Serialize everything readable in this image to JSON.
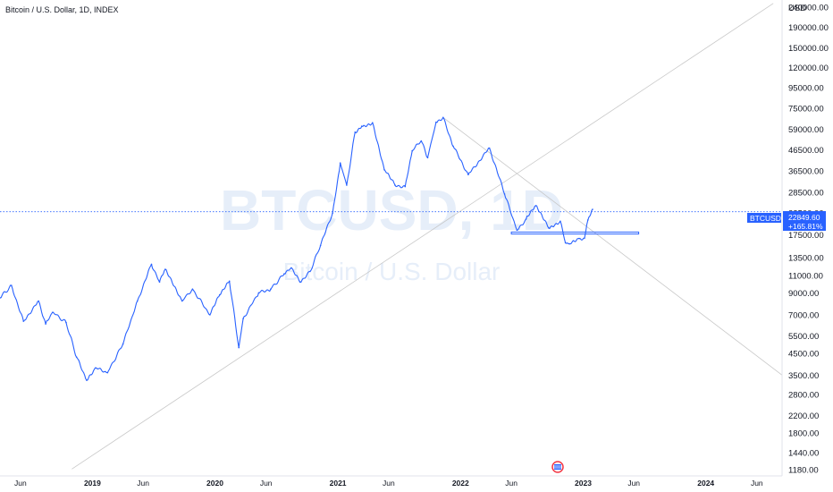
{
  "header": {
    "symbol_title": "Bitcoin / U.S. Dollar, 1D, INDEX"
  },
  "watermark": {
    "ticker": "BTCUSD, 1D",
    "name": "Bitcoin / U.S. Dollar"
  },
  "price_axis": {
    "currency": "USD",
    "labels": [
      "240000.00",
      "190000.00",
      "150000.00",
      "120000.00",
      "95000.00",
      "75000.00",
      "59000.00",
      "46500.00",
      "36500.00",
      "28500.00",
      "22500.00",
      "17500.00",
      "13500.00",
      "11000.00",
      "9000.00",
      "7000.00",
      "5500.00",
      "4500.00",
      "3500.00",
      "2800.00",
      "2200.00",
      "1800.00",
      "1440.00",
      "1180.00"
    ]
  },
  "time_axis": {
    "labels": [
      {
        "text": "Jun",
        "date": "2018-06-01",
        "bold": false
      },
      {
        "text": "2019",
        "date": "2019-01-01",
        "bold": true
      },
      {
        "text": "Jun",
        "date": "2019-06-01",
        "bold": false
      },
      {
        "text": "2020",
        "date": "2020-01-01",
        "bold": true
      },
      {
        "text": "Jun",
        "date": "2020-06-01",
        "bold": false
      },
      {
        "text": "2021",
        "date": "2021-01-01",
        "bold": true
      },
      {
        "text": "Jun",
        "date": "2021-06-01",
        "bold": false
      },
      {
        "text": "2022",
        "date": "2022-01-01",
        "bold": true
      },
      {
        "text": "Jun",
        "date": "2022-06-01",
        "bold": false
      },
      {
        "text": "2023",
        "date": "2023-01-01",
        "bold": true
      },
      {
        "text": "Jun",
        "date": "2023-06-01",
        "bold": false
      },
      {
        "text": "2024",
        "date": "2024-01-01",
        "bold": true
      },
      {
        "text": "Jun",
        "date": "2024-06-01",
        "bold": false
      }
    ]
  },
  "last_price": {
    "symbol_tag": "BTCUSD",
    "price": "22849.60",
    "change": "+165.81%"
  },
  "colors": {
    "series": "#2962ff",
    "guide_lines": "#c8c8c8",
    "watermark": "#e6eef9",
    "axis_border": "#e0e3eb"
  },
  "chart_data": {
    "type": "line",
    "title": "Bitcoin / U.S. Dollar, 1D, INDEX",
    "y_scale": "log",
    "ylim": [
      1100,
      260000
    ],
    "xlim": [
      "2018-04-01",
      "2024-08-15"
    ],
    "series": [
      {
        "name": "BTCUSD",
        "x": [
          "2018-04-01",
          "2018-05-05",
          "2018-06-10",
          "2018-07-25",
          "2018-08-15",
          "2018-09-05",
          "2018-10-15",
          "2018-11-15",
          "2018-12-15",
          "2019-01-10",
          "2019-02-15",
          "2019-04-02",
          "2019-05-15",
          "2019-06-26",
          "2019-07-20",
          "2019-08-06",
          "2019-09-25",
          "2019-10-26",
          "2019-12-17",
          "2020-01-15",
          "2020-02-13",
          "2020-03-12",
          "2020-03-25",
          "2020-05-10",
          "2020-06-15",
          "2020-07-25",
          "2020-08-15",
          "2020-09-10",
          "2020-10-10",
          "2020-11-10",
          "2020-12-16",
          "2021-01-08",
          "2021-01-27",
          "2021-02-21",
          "2021-03-13",
          "2021-04-14",
          "2021-05-19",
          "2021-06-20",
          "2021-07-20",
          "2021-08-10",
          "2021-09-06",
          "2021-09-25",
          "2021-10-20",
          "2021-11-10",
          "2021-12-10",
          "2022-01-24",
          "2022-03-28",
          "2022-05-12",
          "2022-06-18",
          "2022-07-15",
          "2022-08-13",
          "2022-09-20",
          "2022-10-25",
          "2022-11-09",
          "2022-11-21",
          "2022-12-20",
          "2023-01-05",
          "2023-01-15",
          "2023-01-29"
        ],
        "y": [
          8500,
          9800,
          6500,
          8200,
          6300,
          7200,
          6400,
          4300,
          3300,
          3800,
          3600,
          5000,
          8200,
          12500,
          10200,
          11800,
          8200,
          9400,
          7000,
          8800,
          10300,
          4800,
          6700,
          9000,
          9400,
          11200,
          12000,
          10200,
          11500,
          15500,
          22500,
          40000,
          31000,
          57000,
          61000,
          63500,
          37000,
          31000,
          30500,
          46000,
          51500,
          42500,
          64000,
          67500,
          48500,
          35000,
          47500,
          28000,
          18500,
          21000,
          24500,
          19000,
          20500,
          16000,
          15800,
          16800,
          16900,
          20800,
          23500
        ]
      }
    ],
    "support_zone": [
      17700,
      18100
    ]
  }
}
